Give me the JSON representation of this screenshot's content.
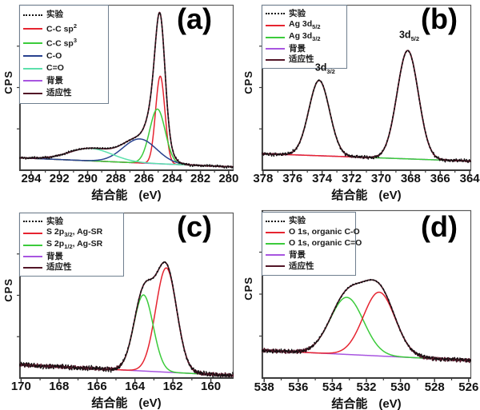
{
  "figure_title": "XPS spectra four-panel figure",
  "chart_data": [
    {
      "type": "line",
      "panel_label": "(a)",
      "ylabel": "CPS",
      "xlabel": "结合能",
      "xlabel_unit": "(eV)",
      "x_axis": {
        "max": 294.85,
        "min": 279.65,
        "ticks": [
          294,
          292,
          290,
          288,
          286,
          284,
          282,
          280
        ]
      },
      "legend": [
        {
          "label": "实验",
          "parts": [
            {
              "t": "实验"
            }
          ],
          "color": "#111111",
          "style": "dotted"
        },
        {
          "label": "C-C sp2",
          "parts": [
            {
              "t": "C-C sp"
            },
            {
              "t": "2",
              "sup": true
            }
          ],
          "color": "#e62430",
          "style": "solid"
        },
        {
          "label": "C-C sp3",
          "parts": [
            {
              "t": "C-C sp"
            },
            {
              "t": "3",
              "sup": true
            }
          ],
          "color": "#3bcb3b",
          "style": "solid"
        },
        {
          "label": "C-O",
          "parts": [
            {
              "t": "C-O"
            }
          ],
          "color": "#28418f",
          "style": "solid"
        },
        {
          "label": "C=O",
          "parts": [
            {
              "t": "C=O"
            }
          ],
          "color": "#5ce0ac",
          "style": "solid"
        },
        {
          "label": "背景",
          "parts": [
            {
              "t": "背景"
            }
          ],
          "color": "#a855e0",
          "style": "solid"
        },
        {
          "label": "适应性",
          "parts": [
            {
              "t": "适应性"
            }
          ],
          "color": "#521527",
          "style": "solid"
        }
      ],
      "background": {
        "color": "#a855e0",
        "left": 0.075,
        "right": 0.02
      },
      "peaks": [
        {
          "name": "C-C sp2",
          "color": "#e62430",
          "center": 284.85,
          "height": 0.53,
          "fwhm": 0.78
        },
        {
          "name": "C-C sp3",
          "color": "#3bcb3b",
          "center": 285.05,
          "height": 0.33,
          "fwhm": 1.3
        },
        {
          "name": "C-O",
          "color": "#28418f",
          "center": 286.3,
          "height": 0.145,
          "fwhm": 2.8
        },
        {
          "name": "C=O",
          "color": "#5ce0ac",
          "center": 289.8,
          "height": 0.075,
          "fwhm": 3.6
        }
      ],
      "envelope_color": "#521527",
      "experimental_color": "#111111",
      "noise": 0.004,
      "dots_noise": 0.008,
      "seed": 3,
      "annotations": []
    },
    {
      "type": "line",
      "panel_label": "(b)",
      "ylabel": "CPS",
      "xlabel": "结合能",
      "xlabel_unit": "(eV)",
      "x_axis": {
        "max": 378.1,
        "min": 363.9,
        "ticks": [
          378,
          376,
          374,
          372,
          370,
          368,
          366,
          364
        ]
      },
      "legend": [
        {
          "label": "实验",
          "parts": [
            {
              "t": "实验"
            }
          ],
          "color": "#111111",
          "style": "dotted"
        },
        {
          "label": "Ag 3d5/2",
          "parts": [
            {
              "t": "Ag 3d"
            },
            {
              "t": "5/2",
              "sub": true
            }
          ],
          "color": "#e62430",
          "style": "solid"
        },
        {
          "label": "Ag 3d3/2",
          "parts": [
            {
              "t": "Ag 3d"
            },
            {
              "t": "3/2",
              "sub": true
            }
          ],
          "color": "#3bcb3b",
          "style": "solid"
        },
        {
          "label": "背景",
          "parts": [
            {
              "t": "背景"
            }
          ],
          "color": "#a855e0",
          "style": "solid"
        },
        {
          "label": "适应性",
          "parts": [
            {
              "t": "适应性"
            }
          ],
          "color": "#521527",
          "style": "solid"
        }
      ],
      "background": {
        "color": "#a855e0",
        "left": 0.1,
        "right": 0.055
      },
      "peaks": [
        {
          "name": "Ag 3d3/2",
          "color": "#3bcb3b",
          "center": 374.2,
          "height": 0.455,
          "fwhm": 1.65
        },
        {
          "name": "Ag 3d5/2",
          "color": "#e62430",
          "center": 368.2,
          "height": 0.655,
          "fwhm": 1.7
        }
      ],
      "envelope_color": "#521527",
      "experimental_color": "#111111",
      "noise": 0.006,
      "dots_noise": 0.011,
      "seed": 7,
      "annotations": [
        {
          "parts": [
            {
              "t": "3d"
            },
            {
              "t": "3/2",
              "sub": true
            }
          ],
          "x": 373.8,
          "y": 0.575
        },
        {
          "parts": [
            {
              "t": "3d"
            },
            {
              "t": "5/2",
              "sub": true
            }
          ],
          "x": 368.1,
          "y": 0.775
        }
      ]
    },
    {
      "type": "line",
      "panel_label": "(c)",
      "ylabel": "CPS",
      "xlabel": "结合能",
      "xlabel_unit": "(eV)",
      "x_axis": {
        "max": 170.1,
        "min": 158.8,
        "ticks": [
          170,
          168,
          166,
          164,
          162,
          160
        ]
      },
      "legend": [
        {
          "label": "实验",
          "parts": [
            {
              "t": "实验"
            }
          ],
          "color": "#111111",
          "style": "dotted"
        },
        {
          "label": "S 2p3/2, Ag-SR",
          "parts": [
            {
              "t": "S 2p"
            },
            {
              "t": "3/2",
              "sub": true
            },
            {
              "t": ", Ag-SR"
            }
          ],
          "color": "#e62430",
          "style": "solid"
        },
        {
          "label": "S 2p1/2, Ag-SR",
          "parts": [
            {
              "t": "S 2p"
            },
            {
              "t": "1/2",
              "sub": true
            },
            {
              "t": ", Ag-SR"
            }
          ],
          "color": "#3bcb3b",
          "style": "solid"
        },
        {
          "label": "背景",
          "parts": [
            {
              "t": "背景"
            }
          ],
          "color": "#a855e0",
          "style": "solid"
        },
        {
          "label": "适应性",
          "parts": [
            {
              "t": "适应性"
            }
          ],
          "color": "#521527",
          "style": "solid"
        }
      ],
      "background": {
        "color": "#a855e0",
        "left": 0.08,
        "right": 0.015
      },
      "peaks": [
        {
          "name": "S 2p3/2 Ag-SR",
          "color": "#e62430",
          "center": 162.35,
          "height": 0.63,
          "fwhm": 1.3
        },
        {
          "name": "S 2p1/2 Ag-SR",
          "color": "#3bcb3b",
          "center": 163.55,
          "height": 0.46,
          "fwhm": 1.2
        }
      ],
      "envelope_color": "#521527",
      "experimental_color": "#111111",
      "noise": 0.014,
      "dots_noise": 0.016,
      "seed": 11,
      "annotations": []
    },
    {
      "type": "line",
      "panel_label": "(d)",
      "ylabel": "CPS",
      "xlabel": "结合能",
      "xlabel_unit": "(eV)",
      "x_axis": {
        "max": 538.15,
        "min": 525.85,
        "ticks": [
          538,
          536,
          534,
          532,
          530,
          528,
          526
        ]
      },
      "legend": [
        {
          "label": "实验",
          "parts": [
            {
              "t": "实验"
            }
          ],
          "color": "#111111",
          "style": "dotted"
        },
        {
          "label": "O 1s, organic C-O",
          "parts": [
            {
              "t": "O 1s, organic C-O"
            }
          ],
          "color": "#e62430",
          "style": "solid"
        },
        {
          "label": "O 1s, organic C=O",
          "parts": [
            {
              "t": "O 1s, organic C=O"
            }
          ],
          "color": "#3bcb3b",
          "style": "solid"
        },
        {
          "label": "背景",
          "parts": [
            {
              "t": "背景"
            }
          ],
          "color": "#a855e0",
          "style": "solid"
        },
        {
          "label": "适应性",
          "parts": [
            {
              "t": "适应性"
            }
          ],
          "color": "#521527",
          "style": "solid"
        }
      ],
      "background": {
        "color": "#a855e0",
        "left": 0.165,
        "right": 0.105
      },
      "peaks": [
        {
          "name": "O 1s organic C=O",
          "color": "#3bcb3b",
          "center": 533.15,
          "height": 0.34,
          "fwhm": 2.3
        },
        {
          "name": "O 1s organic C-O",
          "color": "#e62430",
          "center": 531.25,
          "height": 0.38,
          "fwhm": 2.2
        }
      ],
      "envelope_color": "#521527",
      "experimental_color": "#111111",
      "noise": 0.014,
      "dots_noise": 0.012,
      "seed": 17,
      "annotations": []
    }
  ]
}
